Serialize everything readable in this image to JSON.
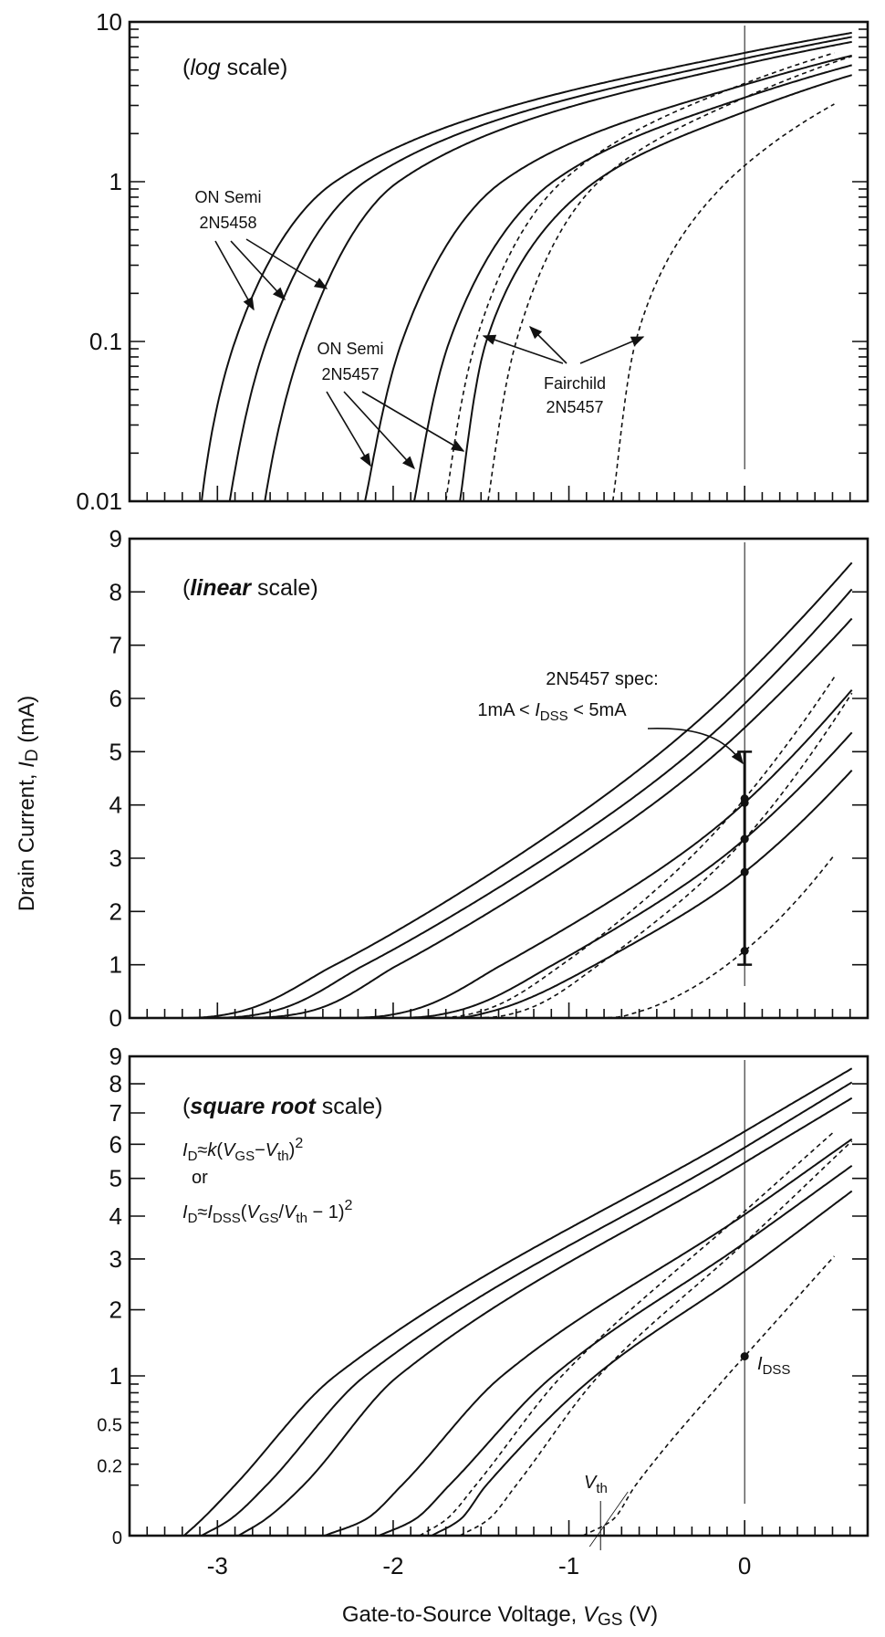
{
  "chart_data": {
    "type": "line",
    "xlabel": {
      "main": "Gate-to-Source Voltage, ",
      "var": "V",
      "sub": "GS",
      "unit": "  (V)"
    },
    "ylabel": {
      "main": "Drain Current, ",
      "var": "I",
      "sub": "D",
      "unit": "  (mA)"
    },
    "xlim": [
      -3.5,
      0.7
    ],
    "x_ticks": [
      -3,
      -2,
      -1,
      0
    ],
    "x_tick_labels": [
      "-3",
      "-2",
      "-1",
      "0"
    ],
    "x_minor_step": 0.1,
    "panels": [
      {
        "id": "log",
        "scale": "log",
        "ylim": [
          0.01,
          10
        ],
        "title_open": "(",
        "title_em": "log",
        "title_rest": " scale)",
        "y_ticks": [
          10,
          1,
          0.1,
          0.01
        ],
        "y_tick_labels": [
          "10",
          "1",
          "0.1",
          "0.01"
        ]
      },
      {
        "id": "linear",
        "scale": "linear",
        "ylim": [
          0,
          9
        ],
        "title_open": "(",
        "title_em": "linear",
        "title_rest": " scale)",
        "y_ticks": [
          0,
          1,
          2,
          3,
          4,
          5,
          6,
          7,
          8,
          9
        ],
        "y_tick_labels": [
          "0",
          "1",
          "2",
          "3",
          "4",
          "5",
          "6",
          "7",
          "8",
          "9"
        ]
      },
      {
        "id": "sqrt",
        "scale": "sqrt",
        "ylim": [
          0,
          9
        ],
        "title_open": "(",
        "title_em": "square root",
        "title_rest": " scale)",
        "y_ticks": [
          0,
          0.2,
          0.5,
          1,
          2,
          3,
          4,
          5,
          6,
          7,
          8,
          9
        ],
        "y_tick_labels": [
          "0",
          "0.2",
          "0.5",
          "1",
          "2",
          "3",
          "4",
          "5",
          "6",
          "7",
          "8",
          "9"
        ]
      }
    ],
    "series": [
      {
        "name": "ON Semi 2N5458 #1",
        "style": "solid",
        "points": [
          [
            -3.19,
            0
          ],
          [
            -3.09,
            0.01
          ],
          [
            -2.9,
            0.1
          ],
          [
            -2.33,
            1
          ],
          [
            0,
            6.4
          ],
          [
            0.61,
            8.55
          ]
        ]
      },
      {
        "name": "ON Semi 2N5458 #2",
        "style": "solid",
        "points": [
          [
            -3.09,
            0
          ],
          [
            -2.93,
            0.01
          ],
          [
            -2.72,
            0.1
          ],
          [
            -2.16,
            1
          ],
          [
            0,
            5.9
          ],
          [
            0.61,
            8.05
          ]
        ]
      },
      {
        "name": "ON Semi 2N5458 #3",
        "style": "solid",
        "points": [
          [
            -2.88,
            0
          ],
          [
            -2.73,
            0.01
          ],
          [
            -2.51,
            0.1
          ],
          [
            -1.97,
            1
          ],
          [
            0,
            5.45
          ],
          [
            0.61,
            7.5
          ]
        ]
      },
      {
        "name": "ON Semi 2N5457 #1",
        "style": "solid",
        "points": [
          [
            -2.39,
            0
          ],
          [
            -2.16,
            0.01
          ],
          [
            -1.95,
            0.1
          ],
          [
            -1.38,
            1
          ],
          [
            0,
            4.04
          ],
          [
            0.61,
            6.16
          ]
        ]
      },
      {
        "name": "ON Semi 2N5457 #2",
        "style": "solid",
        "points": [
          [
            -2.08,
            0
          ],
          [
            -1.88,
            0.01
          ],
          [
            -1.68,
            0.1
          ],
          [
            -1.09,
            1
          ],
          [
            0,
            3.36
          ],
          [
            0.61,
            5.36
          ]
        ]
      },
      {
        "name": "ON Semi 2N5457 #3",
        "style": "solid",
        "points": [
          [
            -1.78,
            0
          ],
          [
            -1.62,
            0.01
          ],
          [
            -1.47,
            0.1
          ],
          [
            -0.85,
            1
          ],
          [
            0,
            2.74
          ],
          [
            0.61,
            4.65
          ]
        ]
      },
      {
        "name": "Fairchild 2N5457 #1",
        "style": "dashed",
        "points": [
          [
            -1.85,
            0
          ],
          [
            -1.7,
            0.01
          ],
          [
            -1.53,
            0.1
          ],
          [
            -1.04,
            1
          ],
          [
            0,
            4.12
          ],
          [
            0.51,
            6.4
          ]
        ]
      },
      {
        "name": "Fairchild 2N5457 #2",
        "style": "dashed",
        "points": [
          [
            -1.62,
            0
          ],
          [
            -1.46,
            0.01
          ],
          [
            -1.3,
            0.1
          ],
          [
            -0.83,
            1
          ],
          [
            0,
            3.36
          ],
          [
            0.61,
            6.1
          ]
        ]
      },
      {
        "name": "Fairchild 2N5457 #3",
        "style": "dashed",
        "points": [
          [
            -0.92,
            0
          ],
          [
            -0.75,
            0.01
          ],
          [
            -0.62,
            0.1
          ],
          [
            -0.1,
            1
          ],
          [
            0,
            1.26
          ],
          [
            0.51,
            3.06
          ]
        ]
      }
    ],
    "idss_points": [
      4.12,
      4.04,
      3.36,
      3.36,
      2.74,
      1.26
    ],
    "spec_range": [
      1,
      5
    ],
    "annotations": {
      "onsemi_5458": [
        "ON Semi",
        "2N5458"
      ],
      "onsemi_5457": [
        "ON Semi",
        "2N5457"
      ],
      "fairchild_5457": [
        "Fairchild",
        "2N5457"
      ],
      "spec_line1": "2N5457 spec:",
      "spec_line2": {
        "a": "1mA < ",
        "var": "I",
        "sub": "DSS",
        "b": " < 5mA"
      },
      "formula1": {
        "I": "I",
        "D": "D",
        "approx": "≈",
        "k": "k",
        "open": "(",
        "V1": "V",
        "GS": "GS",
        "minus": "−",
        "V2": "V",
        "th": "th",
        "close": ")",
        "sq": "2"
      },
      "formula_or": "or",
      "formula2": {
        "I": "I",
        "D": "D",
        "approx": "≈",
        "I2": "I",
        "DSS": "DSS",
        "open": "(",
        "V1": "V",
        "GS": "GS",
        "slash": "/",
        "V2": "V",
        "th": "th",
        "rest": " − 1)",
        "sq": "2"
      },
      "idss_label": {
        "var": "I",
        "sub": "DSS"
      },
      "vth_label": {
        "var": "V",
        "sub": "th"
      },
      "vth_value": -0.82
    }
  }
}
